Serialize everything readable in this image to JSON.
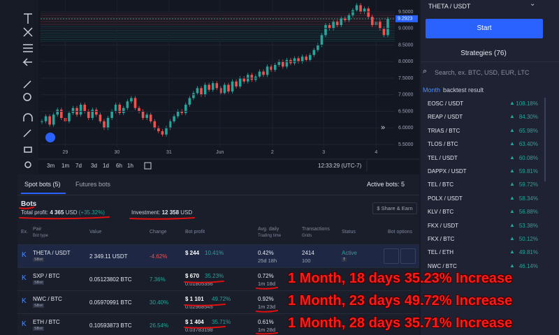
{
  "chart": {
    "type": "candlestick",
    "closes": [
      6.2,
      6.35,
      6.1,
      6.4,
      6.55,
      6.3,
      6.2,
      6.45,
      6.6,
      6.4,
      6.7,
      6.5,
      6.3,
      6.55,
      6.4,
      6.2,
      6.0,
      6.3,
      6.5,
      6.7,
      6.45,
      6.6,
      6.8,
      6.9,
      6.6,
      6.5,
      6.3,
      6.4,
      6.2,
      6.0,
      5.9,
      5.8,
      6.0,
      6.2,
      6.35,
      6.5,
      6.45,
      6.7,
      6.9,
      7.05,
      7.2,
      7.0,
      7.3,
      7.15,
      7.35,
      7.2,
      7.05,
      7.3,
      7.1,
      7.4,
      7.25,
      7.5,
      7.4,
      7.6,
      7.45,
      7.55,
      7.7,
      7.6,
      7.85,
      7.75,
      7.9,
      8.0,
      7.85,
      8.05,
      7.95,
      8.1,
      8.0,
      8.15,
      8.05,
      8.2,
      8.35,
      8.5,
      8.8,
      9.1,
      9.0,
      9.2,
      9.1,
      9.3,
      9.25,
      9.4,
      9.55,
      9.7,
      9.5,
      9.6,
      9.35,
      9.1,
      9.2,
      9.0,
      8.8,
      9.29
    ],
    "ylim": [
      5.395,
      9.858
    ],
    "yticks": [
      {
        "value": 5.5,
        "label": "5.5000"
      },
      {
        "value": 6.0,
        "label": "6.0000"
      },
      {
        "value": 6.5,
        "label": "6.5000"
      },
      {
        "value": 7.0,
        "label": "7.0000"
      },
      {
        "value": 7.5,
        "label": "7.5000"
      },
      {
        "value": 8.0,
        "label": "8.0000"
      },
      {
        "value": 8.5,
        "label": "8.5000"
      },
      {
        "value": 9.0,
        "label": "9.0000"
      },
      {
        "value": 9.5,
        "label": "9.5000"
      }
    ],
    "last_price": {
      "value": 9.2923,
      "label": "9.2923"
    },
    "xticks": [
      {
        "value": 6,
        "label": "29"
      },
      {
        "value": 19.3,
        "label": "30"
      },
      {
        "value": 32.7,
        "label": "31"
      },
      {
        "value": 45.8,
        "label": "Jun"
      },
      {
        "value": 59.3,
        "label": "2"
      },
      {
        "value": 72.5,
        "label": "3"
      },
      {
        "value": 86,
        "label": "4"
      }
    ]
  },
  "timeframes": [
    "3m",
    "1m",
    "7d",
    "3d",
    "1d",
    "6h",
    "1h"
  ],
  "clock": "12:33:29 (UTC-7)",
  "sidebar": {
    "pair": "THETA / USDT",
    "start": "Start",
    "strategies": "Strategies (76)",
    "search_placeholder": "Search, ex. BTC, USD, EUR, LTC",
    "period": "Month",
    "period_suffix": "backtest result",
    "items": [
      {
        "pair": "EOSC / USDT",
        "change": "108.18%"
      },
      {
        "pair": "REAP / USDT",
        "change": "84.30%"
      },
      {
        "pair": "TRIAS / BTC",
        "change": "65.98%"
      },
      {
        "pair": "TLOS / BTC",
        "change": "63.40%"
      },
      {
        "pair": "TEL / USDT",
        "change": "60.08%"
      },
      {
        "pair": "DAPPX / USDT",
        "change": "59.81%"
      },
      {
        "pair": "TEL / BTC",
        "change": "59.72%"
      },
      {
        "pair": "POLX / USDT",
        "change": "58.34%"
      },
      {
        "pair": "KLV / BTC",
        "change": "56.88%"
      },
      {
        "pair": "FKX / USDT",
        "change": "53.38%"
      },
      {
        "pair": "FKX / BTC",
        "change": "50.12%"
      },
      {
        "pair": "TEL / ETH",
        "change": "49.81%"
      },
      {
        "pair": "NWC / BTC",
        "change": "46.14%"
      }
    ]
  },
  "tabs": {
    "spot": "Spot bots (5)",
    "futures": "Futures bots",
    "active": "Active bots: 5"
  },
  "summary": {
    "title": "Bots",
    "profit_label": "Total profit:",
    "profit": "4 365",
    "profit_unit": "USD",
    "profit_pct": "(+35.32%)",
    "investment_label": "Investment:",
    "investment": "12 358",
    "investment_unit": "USD",
    "share": "$ Share & Earn"
  },
  "table": {
    "headers": {
      "ex": "Ex.",
      "pair": "Pair",
      "bot_type": "Bot type",
      "value": "Value",
      "change": "Change",
      "profit": "Bot profit",
      "avg": "Avg. daily",
      "time": "Trading time",
      "tx": "Transactions",
      "grids": "Grids",
      "status": "Status",
      "options": "Bot options"
    },
    "rows": [
      {
        "pair": "THETA / USDT",
        "type": "SBot",
        "value": "2 349.11 USDT",
        "change": "-4.62%",
        "profit": "$ 244",
        "profit_pct": "10.41%",
        "avg": "0.42%",
        "time": "25d 18h",
        "tx": "2414",
        "grids": "100",
        "status": "Active",
        "status_tag": "T"
      },
      {
        "pair": "SXP / BTC",
        "type": "SBot",
        "value": "0.05123802 BTC",
        "change": "7.36%",
        "profit": "$ 670",
        "profit_pct": "35.23%",
        "profit_sub": "0.01805356",
        "avg": "0.72%",
        "time": "1m 18d"
      },
      {
        "pair": "NWC / BTC",
        "type": "SBot",
        "value": "0.05970991 BTC",
        "change": "30.40%",
        "profit": "$ 1 101",
        "profit_pct": "49.72%",
        "profit_sub": "0.02968545",
        "avg": "0.92%",
        "time": "1m 23d"
      },
      {
        "pair": "ETH / BTC",
        "type": "SBot",
        "value": "0.10593873 BTC",
        "change": "26.54%",
        "profit": "$ 1 404",
        "profit_pct": "35.71%",
        "profit_sub": "0.03783198",
        "avg": "0.61%",
        "time": "1m 28d"
      }
    ]
  },
  "annotations": [
    "1 Month, 18 days 35.23% Increase",
    "1 Month, 23 days 49.72% Increase",
    "1 Month, 28 days 35.71% Increase"
  ]
}
